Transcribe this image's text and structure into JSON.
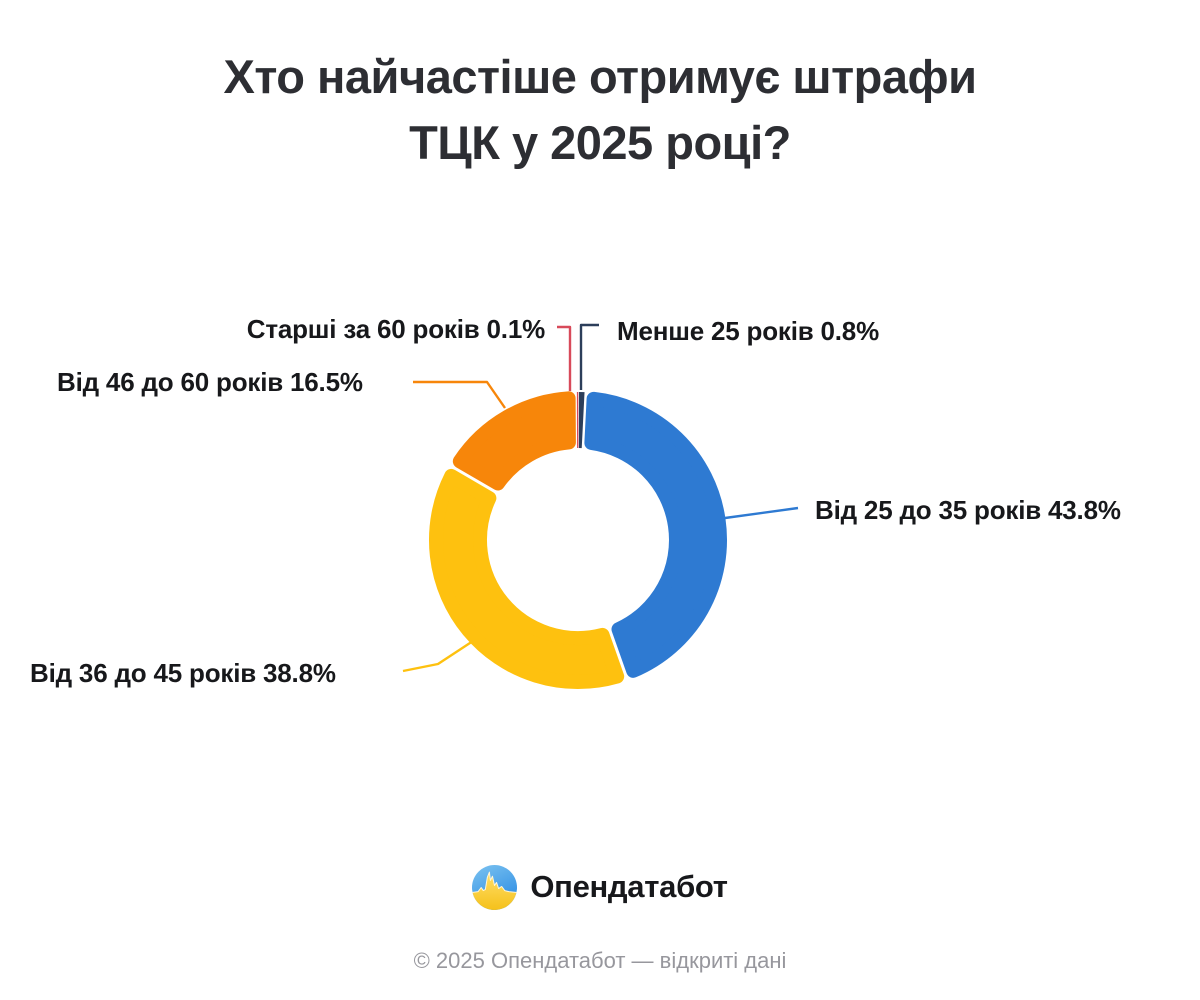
{
  "title": {
    "line1": "Хто найчастіше отримує штрафи",
    "line2": "ТЦК у 2025 році?"
  },
  "chart_data": {
    "type": "pie",
    "variant": "donut",
    "title": "Хто найчастіше отримує штрафи ТЦК у 2025 році?",
    "unit": "%",
    "start_angle_deg": 0,
    "direction": "clockwise",
    "slices": [
      {
        "label": "Менше 25 років",
        "value": 0.8,
        "display": "Менше 25 років 0.8%",
        "color": "#2c3e5a"
      },
      {
        "label": "Від 25 до 35 років",
        "value": 43.8,
        "display": "Від 25 до 35 років 43.8%",
        "color": "#2e7ad2"
      },
      {
        "label": "Від 36 до 45 років",
        "value": 38.8,
        "display": "Від 36 до 45 років 38.8%",
        "color": "#fec10f"
      },
      {
        "label": "Від 46 до 60 років",
        "value": 16.5,
        "display": "Від 46 до 60 років 16.5%",
        "color": "#f7860a"
      },
      {
        "label": "Старші за 60 років",
        "value": 0.1,
        "display": "Старші за 60 років 0.1%",
        "color": "#d84a5a"
      }
    ]
  },
  "footer": {
    "brand": "Опендатабот",
    "copyright": "© 2025 Опендатабот — відкриті дані"
  },
  "colors": {
    "background": "#ffffff",
    "title_text": "#2d2e33",
    "label_text": "#17181b",
    "muted_text": "#97979d"
  }
}
